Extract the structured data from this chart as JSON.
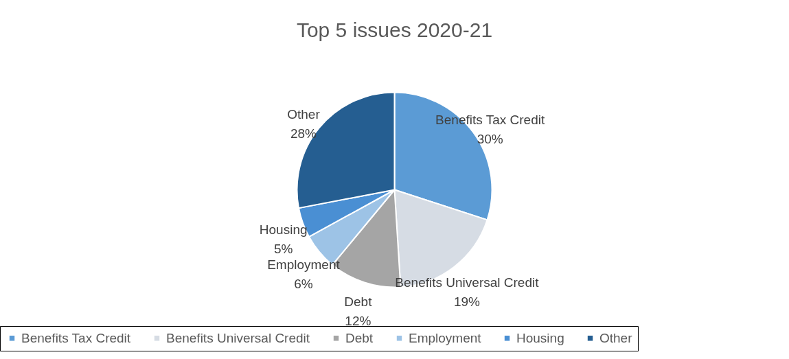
{
  "chart_data": {
    "type": "pie",
    "title": "Top 5 issues 2020-21",
    "categories": [
      "Benefits Tax Credit",
      "Benefits Universal Credit",
      "Debt",
      "Employment",
      "Housing",
      "Other"
    ],
    "values": [
      30,
      19,
      12,
      6,
      5,
      28
    ],
    "value_labels": [
      "30%",
      "19%",
      "12%",
      "6%",
      "5%",
      "28%"
    ],
    "colors": [
      "#5b9bd5",
      "#d6dce4",
      "#a5a5a5",
      "#9dc3e6",
      "#4a8fd3",
      "#255e91"
    ],
    "legend": "bottom"
  }
}
